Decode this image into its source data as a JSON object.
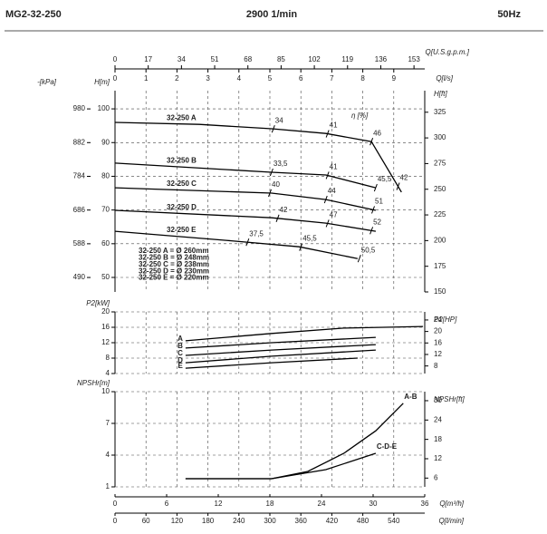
{
  "header": {
    "model": "MG2-32-250",
    "speed": "2900 1/min",
    "frequency": "50Hz"
  },
  "chart_data": [
    {
      "type": "line",
      "ylabel": "H[m]",
      "xlim": [
        0,
        36
      ],
      "ylim": [
        45.7,
        105.4
      ],
      "yticks": [
        50,
        60,
        70,
        80,
        90,
        100
      ],
      "y2label": "H[ft]",
      "y2lim": [
        150,
        346
      ],
      "y2ticks": [
        150,
        175,
        200,
        225,
        250,
        275,
        300,
        325
      ],
      "y3label": "-[kPa]",
      "y3lim": [
        448,
        1033
      ],
      "y3ticks": [
        490,
        588,
        686,
        784,
        882,
        980
      ],
      "x2label": "Q[U.S.g.p.m.]",
      "x2lim": [
        0,
        158.5
      ],
      "x2ticks": [
        0,
        17,
        34,
        51,
        68,
        85,
        102,
        119,
        136,
        153
      ],
      "x3label": "Q[l/s]",
      "x3lim": [
        0,
        10
      ],
      "x3ticks": [
        0,
        1,
        2,
        3,
        4,
        5,
        6,
        7,
        8,
        9
      ],
      "grid": true,
      "color": "#000000",
      "efficiency_label": "η [%]",
      "diameter_notes": [
        "32-250 A = Ø 260mm",
        "32-250 B = Ø 248mm",
        "32-250 C = Ø 238mm",
        "32-250 D = Ø 230mm",
        "32-250 E = Ø 220mm"
      ],
      "series": [
        {
          "name": "32-250 A",
          "x": [
            0,
            9.8,
            18.2,
            24.5,
            29.8,
            33.3
          ],
          "values": [
            96,
            95.4,
            94.1,
            92.7,
            90.3,
            75.3
          ],
          "efficiency": [
            {
              "x": 18.4,
              "label": "34"
            },
            {
              "x": 24.7,
              "label": "41"
            },
            {
              "x": 29.8,
              "label": "46"
            },
            {
              "x": 32.9,
              "label": "42"
            }
          ]
        },
        {
          "name": "32-250 B",
          "x": [
            0,
            18.2,
            24.5,
            30.3
          ],
          "values": [
            83.9,
            81.2,
            80.4,
            76.6
          ],
          "efficiency": [
            {
              "x": 18.2,
              "label": "33,5"
            },
            {
              "x": 24.7,
              "label": "41"
            },
            {
              "x": 30.3,
              "label": "45,5"
            }
          ]
        },
        {
          "name": "32-250 C",
          "x": [
            0,
            18.2,
            24.5,
            30.3
          ],
          "values": [
            76.6,
            75,
            73.1,
            69.9
          ],
          "efficiency": [
            {
              "x": 18,
              "label": "40"
            },
            {
              "x": 24.5,
              "label": "44"
            },
            {
              "x": 30,
              "label": "51"
            }
          ]
        },
        {
          "name": "32-250 D",
          "x": [
            0,
            18.2,
            24.5,
            30.3
          ],
          "values": [
            69.9,
            67.7,
            66.1,
            63.7
          ],
          "efficiency": [
            {
              "x": 18.9,
              "label": "42"
            },
            {
              "x": 24.7,
              "label": "47"
            },
            {
              "x": 29.8,
              "label": "52"
            }
          ]
        },
        {
          "name": "32-250 E",
          "x": [
            0,
            12.9,
            21.4,
            28.2
          ],
          "values": [
            63.7,
            61,
            59.1,
            55.6
          ],
          "efficiency": [
            {
              "x": 15.4,
              "label": "37,5"
            },
            {
              "x": 21.6,
              "label": "45,5"
            },
            {
              "x": 28.4,
              "label": "50,5"
            }
          ]
        }
      ]
    },
    {
      "type": "line",
      "ylabel": "P2[kW]",
      "xlim": [
        0,
        36
      ],
      "ylim": [
        4,
        20
      ],
      "yticks": [
        4,
        8,
        12,
        16,
        20
      ],
      "y2label": "P2[HP]",
      "y2lim": [
        5.364,
        26.82
      ],
      "y2ticks": [
        8,
        12,
        16,
        20,
        24
      ],
      "grid": true,
      "color": "#000000",
      "series": [
        {
          "name": "A",
          "x": [
            8.2,
            18.2,
            26.6,
            35.8
          ],
          "values": [
            12.5,
            14.4,
            15.8,
            16.2
          ]
        },
        {
          "name": "B",
          "x": [
            8.2,
            18.2,
            30.3
          ],
          "values": [
            10.6,
            12,
            13.4
          ]
        },
        {
          "name": "C",
          "x": [
            8.2,
            18.2,
            30.3
          ],
          "values": [
            8.7,
            10.1,
            11.5
          ]
        },
        {
          "name": "D",
          "x": [
            8.2,
            18.2,
            30.3
          ],
          "values": [
            6.8,
            8.5,
            10.1
          ]
        },
        {
          "name": "E",
          "x": [
            8.2,
            18.2,
            28.2
          ],
          "values": [
            5.4,
            6.8,
            8
          ]
        }
      ]
    },
    {
      "type": "line",
      "ylabel": "NPSHr[m]",
      "xlim": [
        0,
        36
      ],
      "ylim": [
        1,
        10
      ],
      "yticks": [
        1,
        4,
        7,
        10
      ],
      "y2label": "NPSHr[ft]",
      "y2lim": [
        3.28,
        32.8
      ],
      "y2ticks": [
        6,
        12,
        18,
        24,
        30
      ],
      "grid": true,
      "color": "#000000",
      "xlabel": "Q[m³/h]",
      "xticks": [
        0,
        6,
        12,
        18,
        24,
        30,
        36
      ],
      "x4label": "Q[l/min]",
      "x4lim": [
        0,
        600
      ],
      "x4ticks": [
        0,
        60,
        120,
        180,
        240,
        300,
        360,
        420,
        480,
        540
      ],
      "series": [
        {
          "name": "A-B",
          "x": [
            8.2,
            18.2,
            22.4,
            26.6,
            30.3,
            33.5
          ],
          "values": [
            1.77,
            1.77,
            2.46,
            4.17,
            6.3,
            8.9
          ]
        },
        {
          "name": "C-D-E",
          "x": [
            8.2,
            18.2,
            24.5,
            30.3
          ],
          "values": [
            1.77,
            1.77,
            2.63,
            4.17
          ]
        }
      ]
    }
  ]
}
